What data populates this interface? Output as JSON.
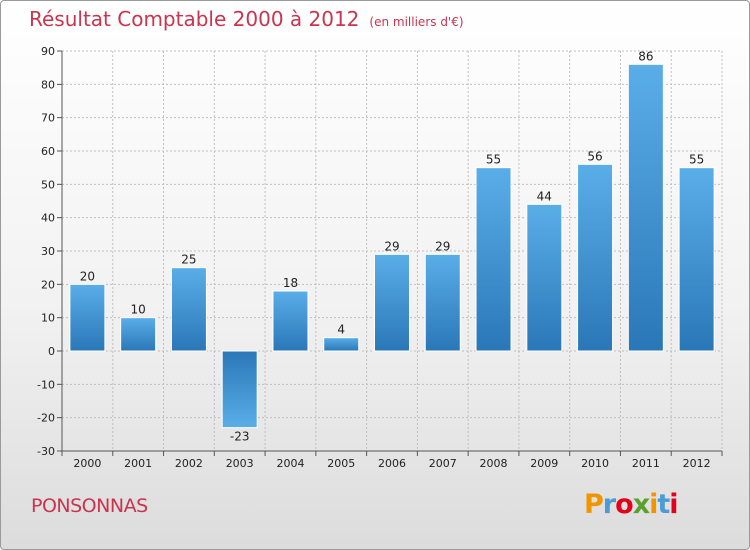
{
  "header": {
    "title": "Résultat Comptable 2000 à 2012",
    "subtitle": "(en milliers d'€)"
  },
  "footer": {
    "commune": "PONSONNAS",
    "logo": {
      "letters": [
        "P",
        "r",
        "o",
        "x",
        "i",
        "t",
        "i"
      ],
      "colors": [
        "#f29400",
        "#4a9bd6",
        "#e2001a",
        "#5aa02c",
        "#f29400",
        "#4a9bd6",
        "#e2001a"
      ]
    }
  },
  "chart_data": {
    "type": "bar",
    "title": "Résultat Comptable 2000 à 2012",
    "subtitle": "(en milliers d'€)",
    "categories": [
      "2000",
      "2001",
      "2002",
      "2003",
      "2004",
      "2005",
      "2006",
      "2007",
      "2008",
      "2009",
      "2010",
      "2011",
      "2012"
    ],
    "values": [
      20,
      10,
      25,
      -23,
      18,
      4,
      29,
      29,
      55,
      44,
      56,
      86,
      55
    ],
    "ylim": [
      -30,
      90
    ],
    "yticks": [
      -30,
      -20,
      -10,
      0,
      10,
      20,
      30,
      40,
      50,
      60,
      70,
      80,
      90
    ],
    "grid": true,
    "xlabel": "",
    "ylabel": "",
    "colors": {
      "bar_light": "#5aaee8",
      "bar_dark": "#2a77b8",
      "grid": "#bfbfbf",
      "axis": "#555555"
    }
  }
}
